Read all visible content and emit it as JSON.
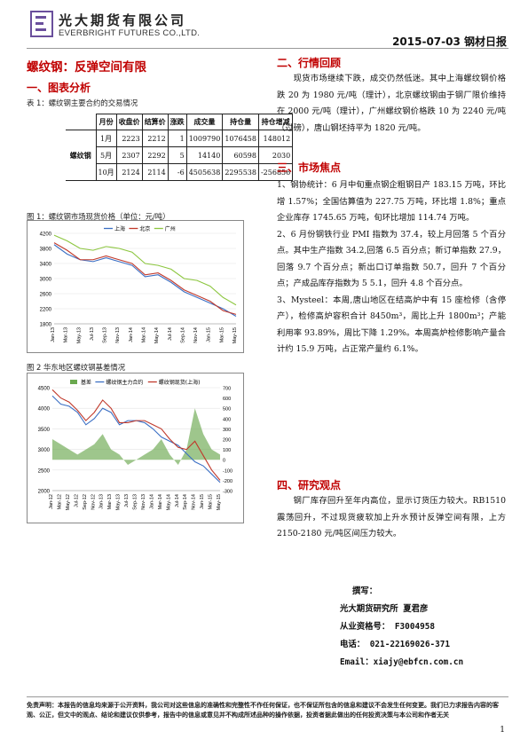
{
  "header": {
    "company_cn": "光大期货有限公司",
    "company_en": "EVERBRIGHT FUTURES CO.,LTD.",
    "date_title": "2015-07-03 钢材日报"
  },
  "headline": "螺纹钢：反弹空间有限",
  "left": {
    "section1_title": "一、图表分析",
    "table_caption": "表 1：螺纹钢主要合约的交易情况",
    "table": {
      "headers": [
        "月份",
        "收盘价",
        "结算价",
        "涨跌",
        "成交量",
        "持仓量",
        "持仓增减"
      ],
      "symbol": "螺纹钢",
      "rows": [
        [
          "1月",
          "2223",
          "2212",
          "1",
          "1009790",
          "1076458",
          "148012"
        ],
        [
          "5月",
          "2307",
          "2292",
          "5",
          "14140",
          "60598",
          "2030"
        ],
        [
          "10月",
          "2124",
          "2114",
          "-6",
          "4505638",
          "2295538",
          "-256856"
        ]
      ]
    },
    "chart1_caption": "图 1：螺纹钢市场现货价格（单位：元/吨）",
    "chart2_caption": "图 2  华东地区螺纹钢基差情况"
  },
  "chart_data": [
    {
      "type": "line",
      "title": "",
      "x": [
        "Jan-13",
        "Mar-13",
        "May-13",
        "Jul-13",
        "Sep-13",
        "Nov-13",
        "Jan-14",
        "Mar-14",
        "May-14",
        "Jul-14",
        "Sep-14",
        "Nov-14",
        "Jan-15",
        "Mar-15",
        "May-15"
      ],
      "ylim": [
        1800,
        4200
      ],
      "yticks": [
        1800,
        2200,
        2600,
        3000,
        3400,
        3800,
        4200
      ],
      "legend_position": "top",
      "series": [
        {
          "name": "上海",
          "color": "#3b6fc4",
          "values": [
            3900,
            3650,
            3500,
            3450,
            3550,
            3450,
            3350,
            3050,
            3100,
            2900,
            2650,
            2500,
            2350,
            2200,
            2000
          ]
        },
        {
          "name": "北京",
          "color": "#c0392b",
          "values": [
            3950,
            3750,
            3500,
            3500,
            3600,
            3500,
            3400,
            3100,
            3150,
            2950,
            2700,
            2550,
            2400,
            2150,
            2050
          ]
        },
        {
          "name": "广州",
          "color": "#8cc63f",
          "values": [
            4150,
            4000,
            3800,
            3750,
            3850,
            3800,
            3700,
            3400,
            3350,
            3250,
            3000,
            2950,
            2800,
            2500,
            2300
          ]
        }
      ]
    },
    {
      "type": "line",
      "title": "",
      "x": [
        "Jan-12",
        "Mar-12",
        "May-12",
        "Jul-12",
        "Sep-12",
        "Nov-12",
        "Jan-13",
        "Mar-13",
        "May-13",
        "Jul-13",
        "Sep-13",
        "Nov-13",
        "Jan-14",
        "Mar-14",
        "May-14",
        "Jul-14",
        "Sep-14",
        "Nov-14",
        "Jan-15",
        "Mar-15",
        "May-15"
      ],
      "ylim": [
        2000,
        4500
      ],
      "yticks": [
        2000,
        2500,
        3000,
        3500,
        4000,
        4500
      ],
      "y2lim": [
        -300,
        700
      ],
      "y2ticks": [
        -300,
        -200,
        -100,
        0,
        100,
        200,
        300,
        400,
        500,
        600,
        700
      ],
      "legend_position": "top",
      "series": [
        {
          "name": "基差",
          "color": "#6aa84f",
          "type": "area",
          "axis": "right",
          "values": [
            200,
            150,
            100,
            50,
            100,
            150,
            250,
            100,
            50,
            -50,
            0,
            50,
            100,
            200,
            50,
            -50,
            100,
            500,
            250,
            100,
            50
          ]
        },
        {
          "name": "螺纹钢主力合约",
          "color": "#3b6fc4",
          "values": [
            4300,
            4100,
            4050,
            3900,
            3600,
            3750,
            4000,
            3900,
            3600,
            3700,
            3700,
            3650,
            3500,
            3300,
            3200,
            3100,
            2900,
            2700,
            2600,
            2400,
            2200
          ]
        },
        {
          "name": "螺纹钢现货(上海)",
          "color": "#c0392b",
          "values": [
            4450,
            4250,
            4150,
            3950,
            3700,
            3900,
            4200,
            4000,
            3650,
            3650,
            3700,
            3700,
            3600,
            3500,
            3250,
            3050,
            3000,
            3200,
            2850,
            2500,
            2250
          ]
        }
      ]
    }
  ],
  "right": {
    "section2_title": "二、行情回顾",
    "section2_para": "现货市场继续下跌，成交仍然低迷。其中上海螺纹钢价格跌 20 为 1980 元/吨（理计），北京螺纹钢由于钢厂限价维持在 2000 元/吨（理计），广州螺纹钢价格跌 10 为 2240 元/吨（过磅），唐山钢坯持平为 1820 元/吨。",
    "section3_title": "三、市场焦点",
    "focus": [
      "1、钢协统计：6 月中旬重点钢企粗钢日产 183.15 万吨，环比增 1.57%；全国估算值为 227.75 万吨，环比增 1.8%；重点企业库存 1745.65 万吨，旬环比增加 114.74 万吨。",
      "2、6 月份钢铁行业 PMI 指数为 37.4，较上月回落 5 个百分点。其中生产指数 34.2,回落 6.5 百分点；新订单指数 27.9，回落 9.7 个百分点；新出口订单指数 50.7，回升 7 个百分点；产成品库存指数为 5 5.1，回升 4.8 个百分点。",
      "3、Mysteel：本周,唐山地区在结高炉中有 15 座检修（含停产），检修高炉容积合计 8450m³，周比上升 1800m³；产能利用率 93.89%，周比下降 1.29%。本周高炉检修影响产量合计约 15.9 万吨，占正常产量约 6.1%。"
    ],
    "section4_title": "四、研究观点",
    "section4_para": "钢厂库存回升至年内高位，显示订货压力较大。RB1510 震荡回升，不过现货疲软加上升水预计反弹空间有限，上方 2150-2180 元/吨区间压力较大。"
  },
  "contact": {
    "label": "撰写：",
    "org": "光大期货研究所  夏君彦",
    "license": "从业资格号：  F3004958",
    "phone": "电话：  021-22169026-371",
    "email": "Email：xiajy@ebfcn.com.cn"
  },
  "disclaimer": "免责声明：本报告的信息均来源于公开资料，我公司对这些信息的准确性和完整性不作任何保证，也不保证所包含的信息和建议不会发生任何变更。我们已力求报告内容的客观、公正，但文中的观点、结论和建议仅供参考，报告中的信息或意见并不构成所述品种的操作依据，投资者据此做出的任何投资决策与本公司和作者无关",
  "page_number": "1"
}
